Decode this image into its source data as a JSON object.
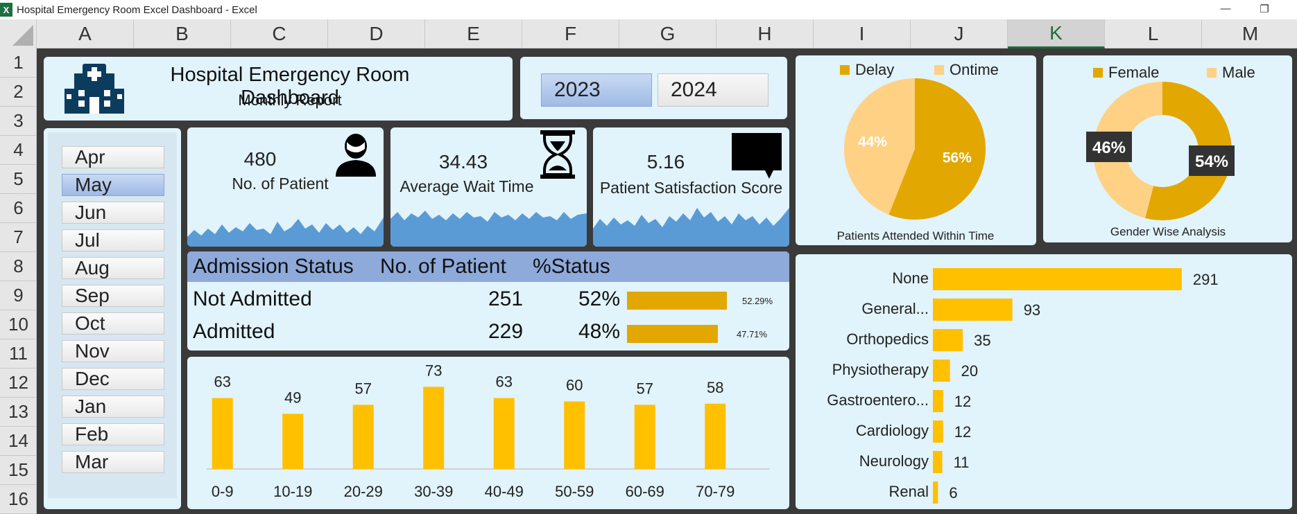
{
  "window": {
    "title": "Hospital Emergency Room Excel Dashboard - Excel",
    "app_icon": "X"
  },
  "columns": [
    "A",
    "B",
    "C",
    "D",
    "E",
    "F",
    "G",
    "H",
    "I",
    "J",
    "K",
    "L",
    "M"
  ],
  "selected_column": "K",
  "rows": [
    "1",
    "2",
    "3",
    "4",
    "5",
    "6",
    "7",
    "8",
    "9",
    "10",
    "11",
    "12",
    "13",
    "14",
    "15",
    "16"
  ],
  "header": {
    "title": "Hospital Emergency Room Dashboard",
    "subtitle": "Monthly Report",
    "icon": "hospital-icon"
  },
  "years": [
    {
      "label": "2023",
      "active": true
    },
    {
      "label": "2024",
      "active": false
    }
  ],
  "months": [
    {
      "label": "Apr",
      "active": false
    },
    {
      "label": "May",
      "active": true
    },
    {
      "label": "Jun",
      "active": false
    },
    {
      "label": "Jul",
      "active": false
    },
    {
      "label": "Aug",
      "active": false
    },
    {
      "label": "Sep",
      "active": false
    },
    {
      "label": "Oct",
      "active": false
    },
    {
      "label": "Nov",
      "active": false
    },
    {
      "label": "Dec",
      "active": false
    },
    {
      "label": "Jan",
      "active": false
    },
    {
      "label": "Feb",
      "active": false
    },
    {
      "label": "Mar",
      "active": false
    }
  ],
  "kpis": [
    {
      "value": "480",
      "label": "No. of Patient",
      "icon": "person-icon"
    },
    {
      "value": "34.43",
      "label": "Average Wait Time",
      "icon": "hourglass-icon"
    },
    {
      "value": "5.16",
      "label": "Patient Satisfaction Score",
      "icon": "speech-bubble-icon"
    }
  ],
  "colors": {
    "accent": "#e2a700",
    "bar": "#ffc000",
    "light": "#ffd184",
    "card": "#e1f3fb",
    "spark": "#5b9bd5",
    "table_header": "#8eaadb"
  },
  "admission": {
    "headers": [
      "Admission Status",
      "No. of Patient",
      "%Status"
    ],
    "rows": [
      {
        "status": "Not Admitted",
        "count": "251",
        "pct": "52%",
        "fraction": 0.5229,
        "detail": "52.29%"
      },
      {
        "status": "Admitted",
        "count": "229",
        "pct": "48%",
        "fraction": 0.4771,
        "detail": "47.71%"
      }
    ]
  },
  "chart_data": [
    {
      "type": "pie",
      "title": "Patients Attended Within Time",
      "legend": "top",
      "slices": [
        {
          "name": "Delay",
          "value": 56,
          "label": "56%"
        },
        {
          "name": "Ontime",
          "value": 44,
          "label": "44%"
        }
      ]
    },
    {
      "type": "pie",
      "variant": "donut",
      "title": "Gender Wise Analysis",
      "legend": "top",
      "slices": [
        {
          "name": "Female",
          "value": 54,
          "label": "54%"
        },
        {
          "name": "Male",
          "value": 46,
          "label": "46%"
        }
      ]
    },
    {
      "type": "bar",
      "orientation": "vertical",
      "categories": [
        "0-9",
        "10-19",
        "20-29",
        "30-39",
        "40-49",
        "50-59",
        "60-69",
        "70-79"
      ],
      "values": [
        63,
        49,
        57,
        73,
        63,
        60,
        57,
        58
      ],
      "ylim": [
        0,
        80
      ],
      "grid": false
    },
    {
      "type": "bar",
      "orientation": "horizontal",
      "categories": [
        "None",
        "General...",
        "Orthopedics",
        "Physiotherapy",
        "Gastroentero...",
        "Cardiology",
        "Neurology",
        "Renal"
      ],
      "values": [
        291,
        93,
        35,
        20,
        12,
        12,
        11,
        6
      ],
      "xlim": [
        0,
        300
      ],
      "grid": false
    }
  ]
}
